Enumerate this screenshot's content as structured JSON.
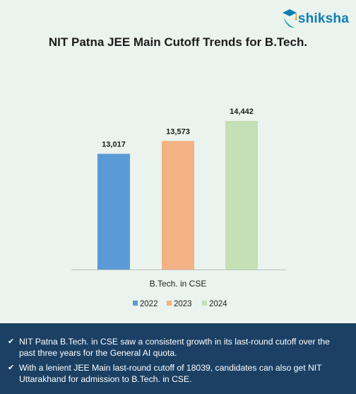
{
  "brand": {
    "name": "shiksha"
  },
  "chart_data": {
    "type": "bar",
    "title": "NIT Patna JEE Main Cutoff Trends for B.Tech.",
    "categories": [
      "B.Tech. in CSE"
    ],
    "series": [
      {
        "name": "2022",
        "values": [
          13017
        ],
        "label": "13,017",
        "color": "#5b9bd5"
      },
      {
        "name": "2023",
        "values": [
          13573
        ],
        "label": "13,573",
        "color": "#f4b183"
      },
      {
        "name": "2024",
        "values": [
          14442
        ],
        "label": "14,442",
        "color": "#c5e0b4"
      }
    ],
    "xlabel": "",
    "ylabel": "",
    "grid": false,
    "legend_position": "bottom"
  },
  "notes": [
    "NIT Patna B.Tech. in CSE saw a consistent growth in its last-round cutoff over the past three years for the General AI quota.",
    "With a lenient JEE Main last-round cutoff of 18039, candidates can also get NIT Uttarakhand for admission to B.Tech. in CSE."
  ]
}
